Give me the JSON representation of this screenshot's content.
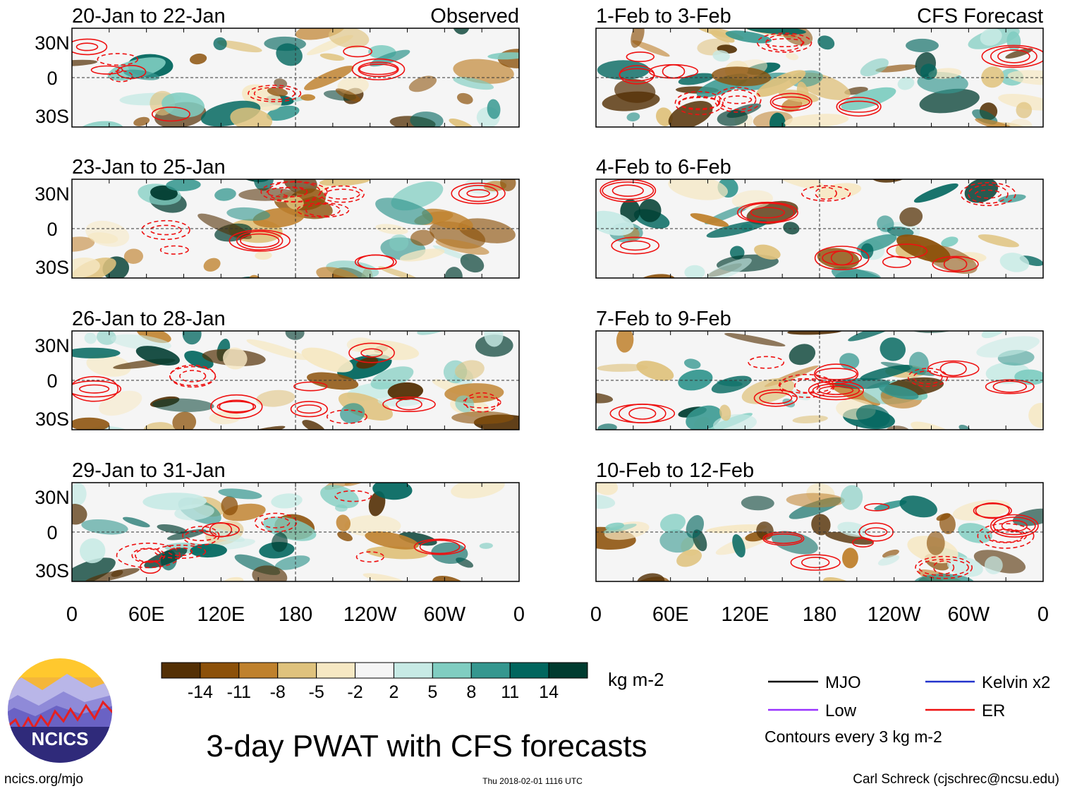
{
  "panels": {
    "observed": [
      {
        "label": "20-Jan to 22-Jan"
      },
      {
        "label": "23-Jan to 25-Jan"
      },
      {
        "label": "26-Jan to 28-Jan"
      },
      {
        "label": "29-Jan to 31-Jan"
      }
    ],
    "forecast": [
      {
        "label": "1-Feb to 3-Feb"
      },
      {
        "label": "4-Feb to 6-Feb"
      },
      {
        "label": "7-Feb to 9-Feb"
      },
      {
        "label": "10-Feb to 12-Feb"
      }
    ],
    "observed_heading": "Observed",
    "forecast_heading": "CFS Forecast"
  },
  "axes": {
    "lat_labels": [
      "30N",
      "0",
      "30S"
    ],
    "lon_labels": [
      "0",
      "60E",
      "120E",
      "180",
      "120W",
      "60W",
      "0"
    ]
  },
  "colorbar": {
    "colors": [
      "#543005",
      "#8c510a",
      "#bf812d",
      "#dfc27d",
      "#f6e8c3",
      "#f5f5f5",
      "#c7eae5",
      "#80cdc1",
      "#35978f",
      "#01665e",
      "#003c30"
    ],
    "ticks": [
      "-14",
      "-11",
      "-8",
      "-5",
      "-2",
      "2",
      "5",
      "8",
      "11",
      "14"
    ],
    "units": "kg m-2"
  },
  "legend": {
    "items": [
      {
        "label": "MJO",
        "color": "#000000"
      },
      {
        "label": "Kelvin x2",
        "color": "#2233cc"
      },
      {
        "label": "Low",
        "color": "#9933ff"
      },
      {
        "label": "ER",
        "color": "#ee1111"
      }
    ],
    "contour_note": "Contours every 3 kg m-2"
  },
  "logo": {
    "text": "NCICS"
  },
  "title": "3-day PWAT with CFS forecasts",
  "footer": {
    "url": "ncics.org/mjo",
    "timestamp": "Thu 2018-02-01 1116 UTC",
    "credit": "Carl Schreck (cjschrec@ncsu.edu)"
  }
}
